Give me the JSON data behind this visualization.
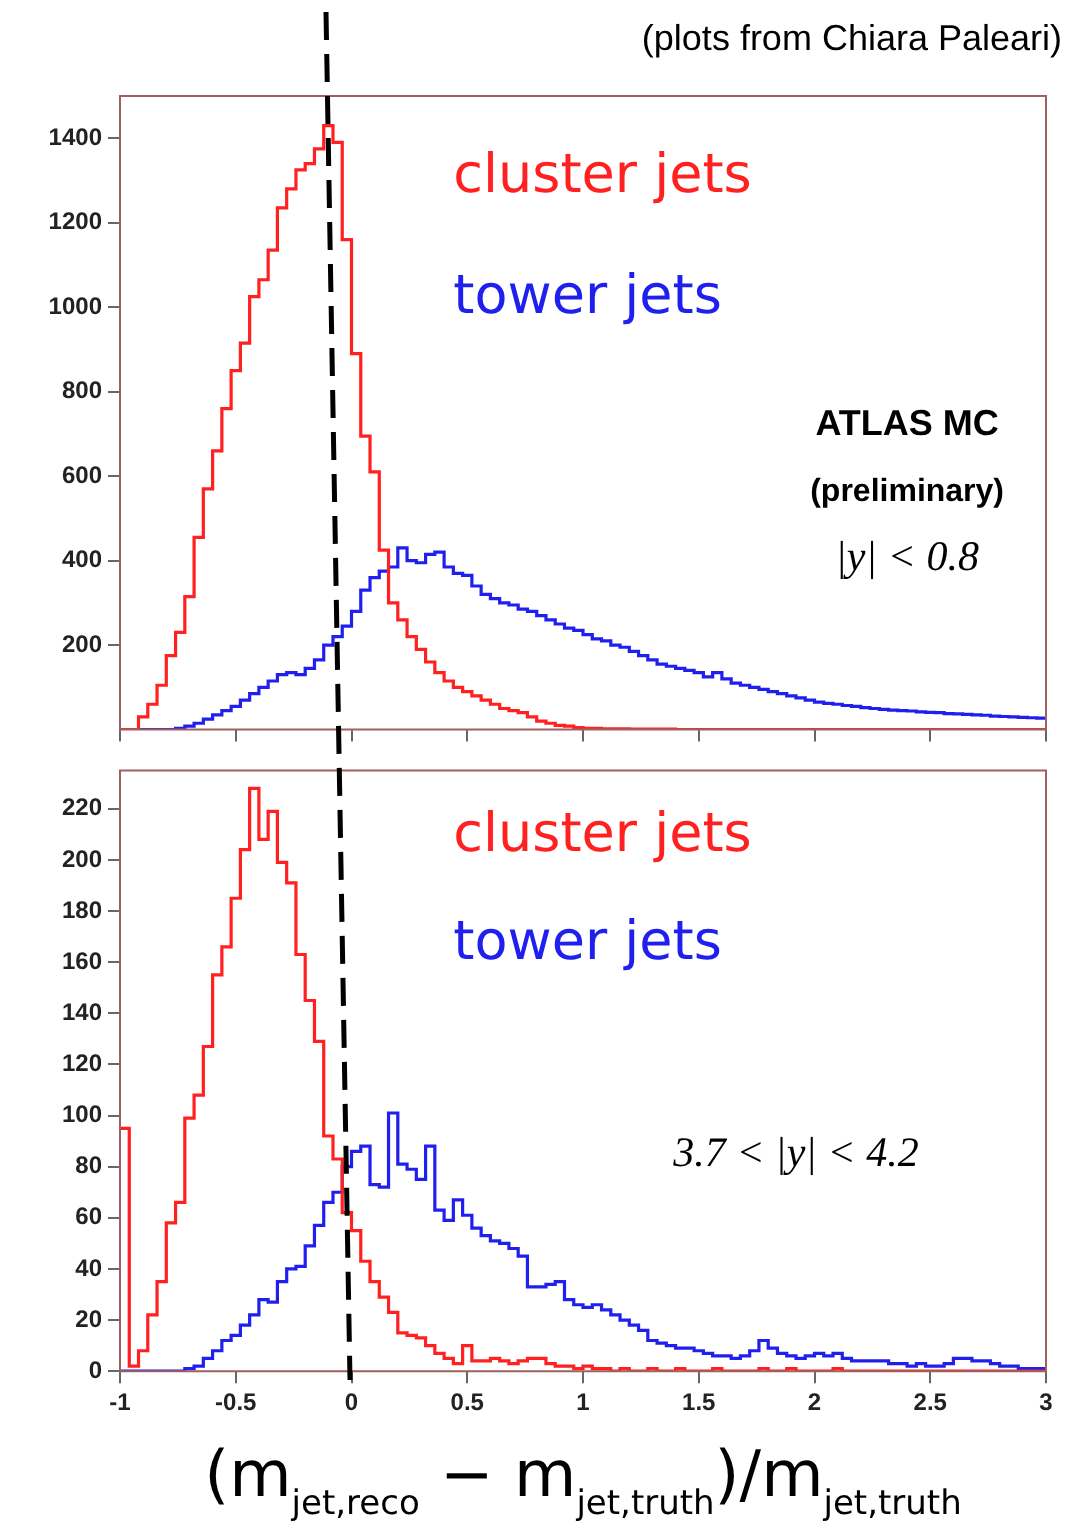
{
  "chart_data": [
    {
      "type": "histogram",
      "annotations": [
        "(plots from Chiara Paleari)",
        "ATLAS MC",
        "(preliminary)",
        "|y| < 0.8"
      ],
      "bins": [
        -1,
        -0.96,
        -0.92,
        -0.88,
        -0.84,
        -0.8,
        -0.76,
        -0.72,
        -0.68,
        -0.64,
        -0.6,
        -0.56,
        -0.52,
        -0.48,
        -0.44,
        -0.4,
        -0.36,
        -0.32,
        -0.28,
        -0.24,
        -0.2,
        -0.16,
        -0.12,
        -0.08,
        -0.04,
        0,
        0.04,
        0.08,
        0.12,
        0.16,
        0.2,
        0.24,
        0.28,
        0.32,
        0.36,
        0.4,
        0.44,
        0.48,
        0.52,
        0.56,
        0.6,
        0.64,
        0.68,
        0.72,
        0.76,
        0.8,
        0.84,
        0.88,
        0.92,
        0.96,
        1,
        1.04,
        1.08,
        1.12,
        1.16,
        1.2,
        1.24,
        1.28,
        1.32,
        1.36,
        1.4,
        1.44,
        1.48,
        1.52,
        1.56,
        1.6,
        1.64,
        1.68,
        1.72,
        1.76,
        1.8,
        1.84,
        1.88,
        1.92,
        1.96,
        2,
        2.04,
        2.08,
        2.12,
        2.16,
        2.2,
        2.24,
        2.28,
        2.32,
        2.36,
        2.4,
        2.44,
        2.48,
        2.52,
        2.56,
        2.6,
        2.64,
        2.68,
        2.72,
        2.76,
        2.8,
        2.84,
        2.88,
        2.92,
        2.96,
        3
      ],
      "series": [
        {
          "name": "cluster jets",
          "color": "#ff2020",
          "values": [
            0,
            0,
            30,
            60,
            105,
            175,
            230,
            315,
            455,
            570,
            660,
            760,
            850,
            915,
            1025,
            1065,
            1135,
            1235,
            1280,
            1325,
            1340,
            1375,
            1430,
            1390,
            1160,
            890,
            695,
            610,
            425,
            300,
            260,
            220,
            190,
            160,
            135,
            115,
            100,
            90,
            80,
            70,
            60,
            50,
            45,
            40,
            30,
            20,
            15,
            10,
            8,
            5,
            3,
            3,
            2,
            2,
            2,
            1,
            1,
            1,
            1,
            1,
            0,
            0,
            0,
            0,
            0,
            0,
            0,
            0,
            0,
            0,
            0,
            0,
            0,
            0,
            0,
            0,
            0,
            0,
            0,
            0,
            0,
            0,
            0,
            0,
            0,
            0,
            0,
            0,
            0,
            0,
            0,
            0,
            0,
            0,
            0,
            0,
            0,
            0,
            0,
            0
          ]
        },
        {
          "name": "tower jets",
          "color": "#2020ee",
          "values": [
            0,
            0,
            0,
            0,
            0,
            0,
            3,
            8,
            15,
            25,
            35,
            45,
            55,
            70,
            85,
            100,
            115,
            130,
            135,
            130,
            145,
            165,
            200,
            220,
            245,
            280,
            330,
            360,
            375,
            385,
            430,
            400,
            395,
            415,
            420,
            385,
            370,
            365,
            340,
            320,
            310,
            300,
            295,
            285,
            280,
            270,
            260,
            250,
            240,
            235,
            225,
            215,
            210,
            200,
            195,
            185,
            175,
            165,
            155,
            150,
            145,
            140,
            135,
            125,
            135,
            120,
            110,
            105,
            100,
            95,
            90,
            85,
            80,
            75,
            70,
            65,
            62,
            60,
            57,
            55,
            52,
            50,
            48,
            46,
            45,
            44,
            42,
            41,
            40,
            38,
            37,
            36,
            35,
            34,
            32,
            31,
            30,
            29,
            28,
            27
          ]
        }
      ],
      "xlim": [
        -1,
        3
      ],
      "xticks": [
        -1,
        -0.5,
        0,
        0.5,
        1,
        1.5,
        2,
        2.5,
        3
      ],
      "ylim": [
        0,
        1500
      ],
      "yticks": [
        200,
        400,
        600,
        800,
        1000,
        1200,
        1400
      ],
      "tick_labels": "y"
    },
    {
      "type": "histogram",
      "xlabel": "(m$_{jet,reco}$ − m$_{jet,truth}$)/m$_{jet,truth}$",
      "annotations": [
        "3.7 < |y| < 4.2"
      ],
      "bins": [
        -1,
        -0.96,
        -0.92,
        -0.88,
        -0.84,
        -0.8,
        -0.76,
        -0.72,
        -0.68,
        -0.64,
        -0.6,
        -0.56,
        -0.52,
        -0.48,
        -0.44,
        -0.4,
        -0.36,
        -0.32,
        -0.28,
        -0.24,
        -0.2,
        -0.16,
        -0.12,
        -0.08,
        -0.04,
        0,
        0.04,
        0.08,
        0.12,
        0.16,
        0.2,
        0.24,
        0.28,
        0.32,
        0.36,
        0.4,
        0.44,
        0.48,
        0.52,
        0.56,
        0.6,
        0.64,
        0.68,
        0.72,
        0.76,
        0.8,
        0.84,
        0.88,
        0.92,
        0.96,
        1,
        1.04,
        1.08,
        1.12,
        1.16,
        1.2,
        1.24,
        1.28,
        1.32,
        1.36,
        1.4,
        1.44,
        1.48,
        1.52,
        1.56,
        1.6,
        1.64,
        1.68,
        1.72,
        1.76,
        1.8,
        1.84,
        1.88,
        1.92,
        1.96,
        2,
        2.04,
        2.08,
        2.12,
        2.16,
        2.2,
        2.24,
        2.28,
        2.32,
        2.36,
        2.4,
        2.44,
        2.48,
        2.52,
        2.56,
        2.6,
        2.64,
        2.68,
        2.72,
        2.76,
        2.8,
        2.84,
        2.88,
        2.92,
        2.96,
        3
      ],
      "series": [
        {
          "name": "cluster jets",
          "color": "#ff2020",
          "values": [
            95,
            2,
            8,
            22,
            35,
            58,
            66,
            99,
            108,
            127,
            155,
            166,
            185,
            204,
            228,
            208,
            219,
            199,
            191,
            163,
            145,
            129,
            92,
            83,
            62,
            55,
            43,
            35,
            29,
            23,
            15,
            14,
            13,
            10,
            7,
            5,
            3,
            10,
            4,
            4,
            5,
            4,
            3,
            4,
            5,
            5,
            3,
            2,
            2,
            1,
            2,
            1,
            1,
            0,
            1,
            0,
            0,
            1,
            0,
            0,
            1,
            0,
            0,
            0,
            1,
            0,
            0,
            0,
            0,
            1,
            0,
            0,
            1,
            0,
            0,
            0,
            0,
            1,
            0,
            0,
            0,
            0,
            0,
            0,
            0,
            0,
            0,
            0,
            0,
            0,
            0,
            0,
            0,
            0,
            0,
            0,
            0,
            0,
            0,
            0
          ]
        },
        {
          "name": "tower jets",
          "color": "#2020ee",
          "values": [
            0,
            0,
            0,
            0,
            0,
            0,
            0,
            1,
            2,
            5,
            8,
            12,
            14,
            18,
            22,
            28,
            27,
            35,
            40,
            41,
            49,
            57,
            66,
            70,
            80,
            86,
            88,
            73,
            72,
            101,
            81,
            79,
            75,
            88,
            63,
            59,
            67,
            61,
            56,
            53,
            51,
            50,
            48,
            45,
            33,
            33,
            34,
            35,
            28,
            26,
            25,
            26,
            24,
            22,
            20,
            18,
            16,
            12,
            11,
            10,
            9,
            9,
            8,
            7,
            6,
            6,
            5,
            6,
            8,
            12,
            9,
            7,
            6,
            5,
            6,
            7,
            6,
            7,
            5,
            4,
            4,
            4,
            4,
            3,
            3,
            2,
            3,
            2,
            2,
            3,
            5,
            5,
            4,
            4,
            3,
            2,
            2,
            1,
            1,
            1
          ]
        }
      ],
      "xlim": [
        -1,
        3
      ],
      "xticks": [
        -1,
        -0.5,
        0,
        0.5,
        1,
        1.5,
        2,
        2.5,
        3
      ],
      "ylim": [
        0,
        235
      ],
      "yticks": [
        0,
        20,
        40,
        60,
        80,
        100,
        120,
        140,
        160,
        180,
        200,
        220
      ]
    }
  ]
}
